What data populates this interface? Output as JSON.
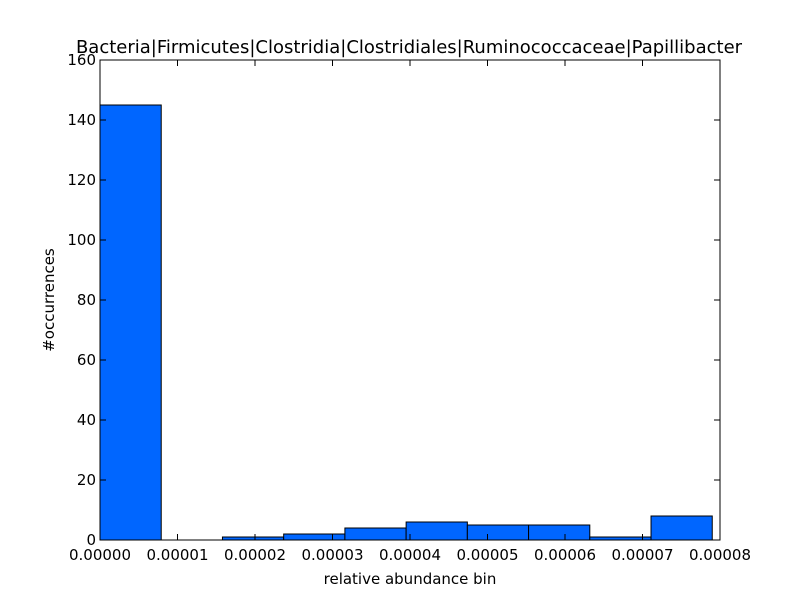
{
  "chart_data": {
    "type": "bar",
    "title": "Bacteria|Firmicutes|Clostridia|Clostridiales|Ruminococcaceae|Papillibacter",
    "xlabel": "relative abundance bin",
    "ylabel": "#occurrences",
    "xlim": [
      0,
      8e-05
    ],
    "ylim": [
      0,
      160
    ],
    "bar_color": "#0066ff",
    "bins": [
      {
        "x0": 0.0,
        "x1": 7.9e-06,
        "count": 145
      },
      {
        "x0": 7.9e-06,
        "x1": 1.58e-05,
        "count": 0
      },
      {
        "x0": 1.58e-05,
        "x1": 2.37e-05,
        "count": 1
      },
      {
        "x0": 2.37e-05,
        "x1": 3.16e-05,
        "count": 2
      },
      {
        "x0": 3.16e-05,
        "x1": 3.95e-05,
        "count": 4
      },
      {
        "x0": 3.95e-05,
        "x1": 4.74e-05,
        "count": 6
      },
      {
        "x0": 4.74e-05,
        "x1": 5.53e-05,
        "count": 5
      },
      {
        "x0": 5.53e-05,
        "x1": 6.32e-05,
        "count": 5
      },
      {
        "x0": 6.32e-05,
        "x1": 7.11e-05,
        "count": 1
      },
      {
        "x0": 7.11e-05,
        "x1": 7.9e-05,
        "count": 8
      }
    ],
    "x_ticks": [
      {
        "value": 0.0,
        "label": "0.00000"
      },
      {
        "value": 1e-05,
        "label": "0.00001"
      },
      {
        "value": 2e-05,
        "label": "0.00002"
      },
      {
        "value": 3e-05,
        "label": "0.00003"
      },
      {
        "value": 4e-05,
        "label": "0.00004"
      },
      {
        "value": 5e-05,
        "label": "0.00005"
      },
      {
        "value": 6e-05,
        "label": "0.00006"
      },
      {
        "value": 7e-05,
        "label": "0.00007"
      },
      {
        "value": 8e-05,
        "label": "0.00008"
      }
    ],
    "y_ticks": [
      {
        "value": 0,
        "label": "0"
      },
      {
        "value": 20,
        "label": "20"
      },
      {
        "value": 40,
        "label": "40"
      },
      {
        "value": 60,
        "label": "60"
      },
      {
        "value": 80,
        "label": "80"
      },
      {
        "value": 100,
        "label": "100"
      },
      {
        "value": 120,
        "label": "120"
      },
      {
        "value": 140,
        "label": "140"
      },
      {
        "value": 160,
        "label": "160"
      }
    ]
  }
}
